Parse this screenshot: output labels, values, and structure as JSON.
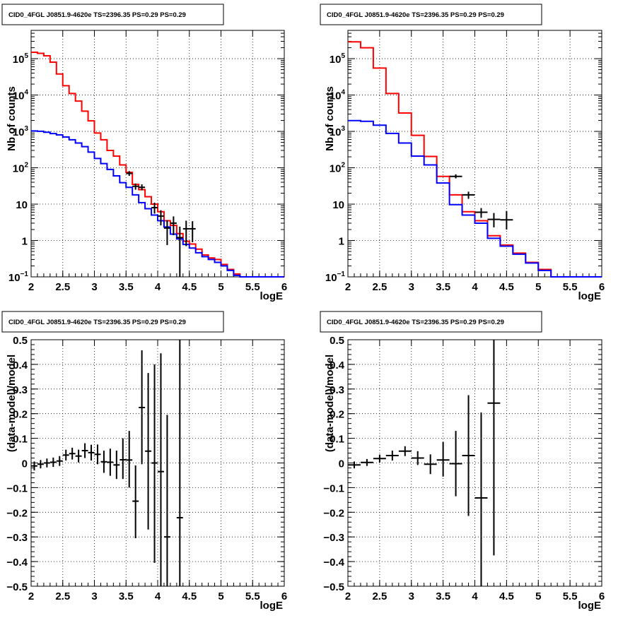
{
  "panels": [
    {
      "title": "CID0_4FGL J0851.9-4620e TS=2396.35 PS=0.29 PS=0.29",
      "xlabel": "logE",
      "ylabel": "Nb of counts"
    },
    {
      "title": "CID0_4FGL J0851.9-4620e TS=2396.35 PS=0.29 PS=0.29",
      "xlabel": "logE",
      "ylabel": "Nb of counts"
    },
    {
      "title": "CID0_4FGL J0851.9-4620e TS=2396.35 PS=0.29 PS=0.29",
      "xlabel": "logE",
      "ylabel": "(data-model)/model"
    },
    {
      "title": "CID0_4FGL J0851.9-4620e TS=2396.35 PS=0.29 PS=0.29",
      "xlabel": "logE",
      "ylabel": "(data-model)/model"
    }
  ],
  "chart_data": [
    {
      "type": "line",
      "title": "CID0_4FGL J0851.9-4620e TS=2396.35 PS=0.29 PS=0.29",
      "xlabel": "logE",
      "ylabel": "Nb of counts",
      "xlim": [
        2,
        6
      ],
      "ylim": [
        0.1,
        600000
      ],
      "ylog": true,
      "grid": true,
      "xticks": [
        "2",
        "2.5",
        "3",
        "3.5",
        "4",
        "4.5",
        "5",
        "5.5",
        "6"
      ],
      "yticks": [
        {
          "v": 0.1,
          "base": "10",
          "exp": "−1"
        },
        {
          "v": 1,
          "label": "1"
        },
        {
          "v": 10,
          "label": "10"
        },
        {
          "v": 100,
          "base": "10",
          "exp": "2"
        },
        {
          "v": 1000,
          "base": "10",
          "exp": "3"
        },
        {
          "v": 10000,
          "base": "10",
          "exp": "4"
        },
        {
          "v": 100000,
          "base": "10",
          "exp": "5"
        }
      ],
      "series": [
        {
          "color": "#ff0000",
          "bin_edges": [
            2.0,
            2.1,
            2.2,
            2.3,
            2.4,
            2.5,
            2.6,
            2.7,
            2.8,
            2.9,
            3.0,
            3.1,
            3.2,
            3.3,
            3.4,
            3.5,
            3.6,
            3.7,
            3.8,
            3.9,
            4.0,
            4.1,
            4.2,
            4.3,
            4.4,
            4.5,
            4.6,
            4.7,
            4.8,
            4.9,
            5.0,
            5.1,
            5.2,
            5.3,
            5.4,
            5.5,
            5.6,
            5.7,
            5.8,
            5.9,
            6.0
          ],
          "values": [
            150000,
            140000,
            120000,
            80000,
            38000,
            18000,
            11000,
            6800,
            3600,
            1950,
            900,
            590,
            300,
            210,
            120,
            75,
            35,
            25,
            16,
            10,
            6.2,
            3.5,
            2.6,
            1.55,
            0.95,
            0.8,
            0.58,
            0.4,
            0.33,
            0.3,
            0.22,
            0.16,
            0.12,
            0.1,
            0.1,
            0.1,
            0.1,
            0.1,
            0.1,
            0.1
          ]
        },
        {
          "color": "#0000ff",
          "bin_edges": [
            2.0,
            2.1,
            2.2,
            2.3,
            2.4,
            2.5,
            2.6,
            2.7,
            2.8,
            2.9,
            3.0,
            3.1,
            3.2,
            3.3,
            3.4,
            3.5,
            3.6,
            3.7,
            3.8,
            3.9,
            4.0,
            4.1,
            4.2,
            4.3,
            4.4,
            4.5,
            4.6,
            4.7,
            4.8,
            4.9,
            5.0,
            5.1,
            5.2,
            5.3,
            5.4,
            5.5,
            5.6,
            5.7,
            5.8,
            5.9,
            6.0
          ],
          "values": [
            1030,
            1010,
            950,
            870,
            800,
            700,
            590,
            480,
            380,
            270,
            180,
            130,
            90,
            60,
            39,
            29,
            18,
            11,
            7.5,
            5.0,
            3.5,
            2.35,
            1.5,
            1.1,
            0.78,
            0.62,
            0.46,
            0.36,
            0.3,
            0.25,
            0.2,
            0.15,
            0.11,
            0.1,
            0.1,
            0.1,
            0.1,
            0.1,
            0.1,
            0.1
          ]
        }
      ],
      "points": [
        {
          "x": 3.55,
          "y": 70,
          "ex": 0.05,
          "ylo": 60,
          "yhi": 81
        },
        {
          "x": 3.65,
          "y": 31,
          "ex": 0.05,
          "ylo": 25,
          "yhi": 37
        },
        {
          "x": 3.75,
          "y": 29,
          "ex": 0.05,
          "ylo": 24,
          "yhi": 35
        },
        {
          "x": 3.95,
          "y": 8,
          "ex": 0.05,
          "ylo": 5.5,
          "yhi": 11
        },
        {
          "x": 4.05,
          "y": 4.7,
          "ex": 0.05,
          "ylo": 2.6,
          "yhi": 6.8
        },
        {
          "x": 4.15,
          "y": 2.2,
          "ex": 0.05,
          "ylo": 0.75,
          "yhi": 3.6
        },
        {
          "x": 4.25,
          "y": 3.0,
          "ex": 0.05,
          "ylo": 1.4,
          "yhi": 4.6
        },
        {
          "x": 4.35,
          "y": 1.2,
          "ex": 0.05,
          "ylo": 0.1,
          "yhi": 2.4
        },
        {
          "x": 4.45,
          "y": 2.1,
          "ex": 0.05,
          "ylo": 0.7,
          "yhi": 3.5
        },
        {
          "x": 4.55,
          "y": 2.1,
          "ex": 0.05,
          "ylo": 0.9,
          "yhi": 3.4
        }
      ]
    },
    {
      "type": "line",
      "title": "CID0_4FGL J0851.9-4620e TS=2396.35 PS=0.29 PS=0.29",
      "xlabel": "logE",
      "ylabel": "Nb of counts",
      "xlim": [
        2,
        6
      ],
      "ylim": [
        0.1,
        600000
      ],
      "ylog": true,
      "grid": true,
      "xticks": [
        "2",
        "2.5",
        "3",
        "3.5",
        "4",
        "4.5",
        "5",
        "5.5",
        "6"
      ],
      "yticks": [
        {
          "v": 0.1,
          "base": "10",
          "exp": "−1"
        },
        {
          "v": 1,
          "label": "1"
        },
        {
          "v": 10,
          "label": "10"
        },
        {
          "v": 100,
          "base": "10",
          "exp": "2"
        },
        {
          "v": 1000,
          "base": "10",
          "exp": "3"
        },
        {
          "v": 10000,
          "base": "10",
          "exp": "4"
        },
        {
          "v": 100000,
          "base": "10",
          "exp": "5"
        }
      ],
      "series": [
        {
          "color": "#ff0000",
          "bin_edges": [
            2.0,
            2.2,
            2.4,
            2.6,
            2.8,
            3.0,
            3.2,
            3.4,
            3.6,
            3.8,
            4.0,
            4.2,
            4.4,
            4.6,
            4.8,
            5.0,
            5.2,
            5.4,
            5.6,
            5.8,
            6.0
          ],
          "values": [
            290000,
            200000,
            55000,
            11000,
            3200,
            780,
            205,
            58,
            18,
            6.2,
            3.5,
            1.35,
            0.75,
            0.45,
            0.25,
            0.16,
            0.1,
            0.1,
            0.1,
            0.1
          ]
        },
        {
          "color": "#0000ff",
          "bin_edges": [
            2.0,
            2.2,
            2.4,
            2.6,
            2.8,
            3.0,
            3.2,
            3.4,
            3.6,
            3.8,
            4.0,
            4.2,
            4.4,
            4.6,
            4.8,
            5.0,
            5.2,
            5.4,
            5.6,
            5.8,
            6.0
          ],
          "values": [
            1980,
            1900,
            1480,
            880,
            480,
            210,
            120,
            38,
            9.7,
            5.0,
            3.0,
            1.15,
            0.7,
            0.42,
            0.24,
            0.15,
            0.1,
            0.1,
            0.1,
            0.1
          ]
        }
      ],
      "points": [
        {
          "x": 3.7,
          "y": 58,
          "ex": 0.1,
          "ylo": 51,
          "yhi": 66
        },
        {
          "x": 3.9,
          "y": 18,
          "ex": 0.1,
          "ylo": 14,
          "yhi": 22
        },
        {
          "x": 4.1,
          "y": 6.0,
          "ex": 0.1,
          "ylo": 4.2,
          "yhi": 7.8
        },
        {
          "x": 4.3,
          "y": 3.8,
          "ex": 0.1,
          "ylo": 2.3,
          "yhi": 5.7
        },
        {
          "x": 4.5,
          "y": 3.7,
          "ex": 0.1,
          "ylo": 2.0,
          "yhi": 6.5
        }
      ]
    },
    {
      "type": "scatter",
      "title": "CID0_4FGL J0851.9-4620e TS=2396.35 PS=0.29 PS=0.29",
      "xlabel": "logE",
      "ylabel": "(data-model)/model",
      "xlim": [
        2,
        6
      ],
      "ylim": [
        -0.5,
        0.5
      ],
      "ylog": false,
      "grid": true,
      "xticks": [
        "2",
        "2.5",
        "3",
        "3.5",
        "4",
        "4.5",
        "5",
        "5.5",
        "6"
      ],
      "yticks": [
        {
          "v": -0.5,
          "label": "−0.5"
        },
        {
          "v": -0.4,
          "label": "−0.4"
        },
        {
          "v": -0.3,
          "label": "−0.3"
        },
        {
          "v": -0.2,
          "label": "−0.2"
        },
        {
          "v": -0.1,
          "label": "−0.1"
        },
        {
          "v": 0,
          "label": "0"
        },
        {
          "v": 0.1,
          "label": "0.1"
        },
        {
          "v": 0.2,
          "label": "0.2"
        },
        {
          "v": 0.3,
          "label": "0.3"
        },
        {
          "v": 0.4,
          "label": "0.4"
        },
        {
          "v": 0.5,
          "label": "0.5"
        }
      ],
      "series": [],
      "points": [
        {
          "x": 2.05,
          "y": -0.012,
          "ex": 0.05,
          "ylo": -0.03,
          "yhi": 0.006
        },
        {
          "x": 2.15,
          "y": -0.005,
          "ex": 0.05,
          "ylo": -0.022,
          "yhi": 0.012
        },
        {
          "x": 2.25,
          "y": 0.0,
          "ex": 0.05,
          "ylo": -0.018,
          "yhi": 0.018
        },
        {
          "x": 2.35,
          "y": 0.003,
          "ex": 0.05,
          "ylo": -0.016,
          "yhi": 0.022
        },
        {
          "x": 2.45,
          "y": 0.008,
          "ex": 0.05,
          "ylo": -0.012,
          "yhi": 0.028
        },
        {
          "x": 2.55,
          "y": 0.032,
          "ex": 0.05,
          "ylo": 0.01,
          "yhi": 0.054
        },
        {
          "x": 2.65,
          "y": 0.038,
          "ex": 0.05,
          "ylo": 0.014,
          "yhi": 0.062
        },
        {
          "x": 2.75,
          "y": 0.028,
          "ex": 0.05,
          "ylo": 0.002,
          "yhi": 0.054
        },
        {
          "x": 2.85,
          "y": 0.05,
          "ex": 0.05,
          "ylo": 0.02,
          "yhi": 0.08
        },
        {
          "x": 2.95,
          "y": 0.042,
          "ex": 0.05,
          "ylo": 0.01,
          "yhi": 0.074
        },
        {
          "x": 3.05,
          "y": 0.035,
          "ex": 0.05,
          "ylo": -0.005,
          "yhi": 0.075
        },
        {
          "x": 3.15,
          "y": 0.005,
          "ex": 0.05,
          "ylo": -0.04,
          "yhi": 0.05
        },
        {
          "x": 3.25,
          "y": 0.003,
          "ex": 0.05,
          "ylo": -0.052,
          "yhi": 0.058
        },
        {
          "x": 3.35,
          "y": -0.008,
          "ex": 0.05,
          "ylo": -0.065,
          "yhi": 0.05
        },
        {
          "x": 3.45,
          "y": 0.013,
          "ex": 0.05,
          "ylo": -0.065,
          "yhi": 0.1
        },
        {
          "x": 3.55,
          "y": 0.012,
          "ex": 0.05,
          "ylo": -0.1,
          "yhi": 0.13
        },
        {
          "x": 3.65,
          "y": -0.155,
          "ex": 0.05,
          "ylo": -0.305,
          "yhi": -0.01
        },
        {
          "x": 3.75,
          "y": 0.225,
          "ex": 0.05,
          "ylo": -0.005,
          "yhi": 0.457
        },
        {
          "x": 3.85,
          "y": 0.048,
          "ex": 0.05,
          "ylo": -0.27,
          "yhi": 0.365
        },
        {
          "x": 3.95,
          "y": 0.0,
          "ex": 0.05,
          "ylo": -0.405,
          "yhi": 0.4
        },
        {
          "x": 4.05,
          "y": -0.035,
          "ex": 0.05,
          "ylo": -0.5,
          "yhi": 0.445
        },
        {
          "x": 4.15,
          "y": -0.3,
          "ex": 0.05,
          "ylo": -0.5,
          "yhi": 0.195
        },
        {
          "x": 4.35,
          "y": -0.222,
          "ex": 0.05,
          "ylo": -0.5,
          "yhi": 0.5
        }
      ]
    },
    {
      "type": "scatter",
      "title": "CID0_4FGL J0851.9-4620e TS=2396.35 PS=0.29 PS=0.29",
      "xlabel": "logE",
      "ylabel": "(data-model)/model",
      "xlim": [
        2,
        6
      ],
      "ylim": [
        -0.5,
        0.5
      ],
      "ylog": false,
      "grid": true,
      "xticks": [
        "2",
        "2.5",
        "3",
        "3.5",
        "4",
        "4.5",
        "5",
        "5.5",
        "6"
      ],
      "yticks": [
        {
          "v": -0.5,
          "label": "−0.5"
        },
        {
          "v": -0.4,
          "label": "−0.4"
        },
        {
          "v": -0.3,
          "label": "−0.3"
        },
        {
          "v": -0.2,
          "label": "−0.2"
        },
        {
          "v": -0.1,
          "label": "−0.1"
        },
        {
          "v": 0,
          "label": "0"
        },
        {
          "v": 0.1,
          "label": "0.1"
        },
        {
          "v": 0.2,
          "label": "0.2"
        },
        {
          "v": 0.3,
          "label": "0.3"
        },
        {
          "v": 0.4,
          "label": "0.4"
        },
        {
          "v": 0.5,
          "label": "0.5"
        }
      ],
      "series": [],
      "points": [
        {
          "x": 2.1,
          "y": -0.008,
          "ex": 0.1,
          "ylo": -0.022,
          "yhi": 0.006
        },
        {
          "x": 2.3,
          "y": 0.002,
          "ex": 0.1,
          "ylo": -0.012,
          "yhi": 0.016
        },
        {
          "x": 2.5,
          "y": 0.018,
          "ex": 0.1,
          "ylo": 0.002,
          "yhi": 0.034
        },
        {
          "x": 2.7,
          "y": 0.03,
          "ex": 0.1,
          "ylo": 0.01,
          "yhi": 0.05
        },
        {
          "x": 2.9,
          "y": 0.048,
          "ex": 0.1,
          "ylo": 0.028,
          "yhi": 0.068
        },
        {
          "x": 3.1,
          "y": 0.02,
          "ex": 0.1,
          "ylo": -0.008,
          "yhi": 0.048
        },
        {
          "x": 3.3,
          "y": -0.005,
          "ex": 0.1,
          "ylo": -0.045,
          "yhi": 0.035
        },
        {
          "x": 3.5,
          "y": 0.012,
          "ex": 0.1,
          "ylo": -0.055,
          "yhi": 0.085
        },
        {
          "x": 3.7,
          "y": -0.003,
          "ex": 0.1,
          "ylo": -0.135,
          "yhi": 0.13
        },
        {
          "x": 3.9,
          "y": 0.03,
          "ex": 0.1,
          "ylo": -0.215,
          "yhi": 0.275
        },
        {
          "x": 4.1,
          "y": -0.142,
          "ex": 0.1,
          "ylo": -0.5,
          "yhi": 0.205
        },
        {
          "x": 4.3,
          "y": 0.243,
          "ex": 0.1,
          "ylo": -0.375,
          "yhi": 0.5
        }
      ]
    }
  ]
}
